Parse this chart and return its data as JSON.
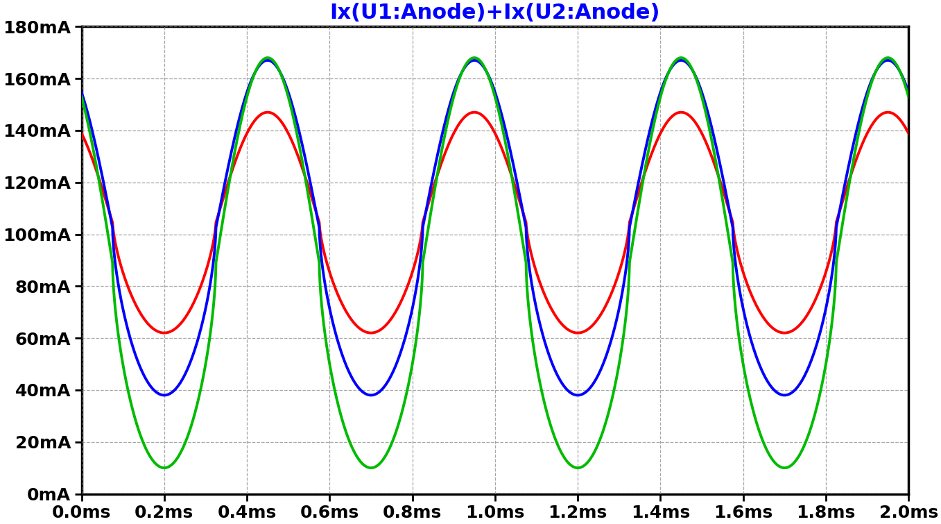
{
  "title": "Ix(U1:Anode)+Ix(U2:Anode)",
  "title_color": "#0000FF",
  "title_fontsize": 22,
  "xmin": 0.0,
  "xmax": 0.002,
  "ymin": 0.0,
  "ymax": 0.18,
  "yticks": [
    0.0,
    0.02,
    0.04,
    0.06,
    0.08,
    0.1,
    0.12,
    0.14,
    0.16,
    0.18
  ],
  "xticks": [
    0.0,
    0.0002,
    0.0004,
    0.0006,
    0.0008,
    0.001,
    0.0012,
    0.0014,
    0.0016,
    0.0018,
    0.002
  ],
  "xtick_labels": [
    "0.0ms",
    "0.2ms",
    "0.4ms",
    "0.6ms",
    "0.8ms",
    "1.0ms",
    "1.2ms",
    "1.4ms",
    "1.6ms",
    "1.8ms",
    "2.0ms"
  ],
  "ytick_labels": [
    "0mA",
    "20mA",
    "40mA",
    "60mA",
    "80mA",
    "100mA",
    "120mA",
    "140mA",
    "160mA",
    "180mA"
  ],
  "background_color": "#ffffff",
  "grid_color": "#888888",
  "freq": 2000,
  "green": {
    "color": "#00bb00",
    "dc": 0.089,
    "amp": 0.079,
    "clip_amp": 0.17,
    "clip_lo": 0.01
  },
  "blue": {
    "color": "#0000FF",
    "dc": 0.1025,
    "amp": 0.0645,
    "clip_amp": 0.167,
    "clip_lo": 0.038
  },
  "red": {
    "color": "#FF0000",
    "dc": 0.1045,
    "amp": 0.0425,
    "clip_amp": 0.147,
    "clip_lo": 0.062
  }
}
